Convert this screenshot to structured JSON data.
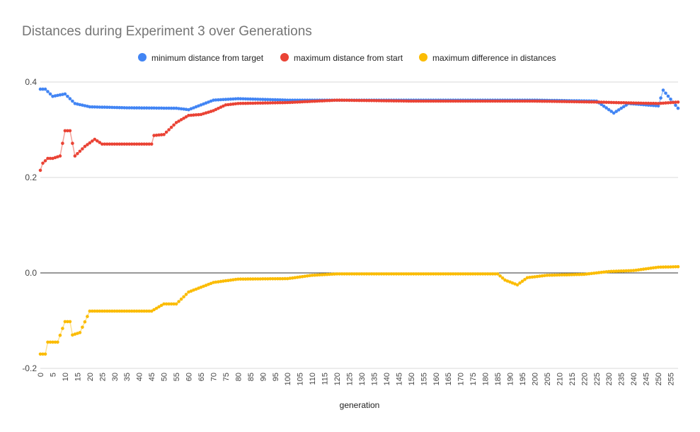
{
  "chart_data": {
    "type": "scatter",
    "title": "Distances during Experiment 3 over Generations",
    "xlabel": "generation",
    "ylabel": "",
    "xlim": [
      0,
      258
    ],
    "ylim": [
      -0.2,
      0.4
    ],
    "y_ticks": [
      {
        "value": -0.2,
        "label": "-0.2"
      },
      {
        "value": 0,
        "label": "0.0"
      },
      {
        "value": 0.2,
        "label": "0.2"
      },
      {
        "value": 0.4,
        "label": "0.4"
      }
    ],
    "x_ticks": [
      0,
      5,
      10,
      15,
      20,
      25,
      30,
      35,
      40,
      45,
      50,
      55,
      60,
      65,
      70,
      75,
      80,
      85,
      90,
      95,
      100,
      105,
      110,
      115,
      120,
      125,
      130,
      135,
      140,
      145,
      150,
      155,
      160,
      165,
      170,
      175,
      180,
      185,
      190,
      195,
      200,
      205,
      210,
      215,
      220,
      225,
      230,
      235,
      240,
      245,
      250,
      255
    ],
    "grid": true,
    "legend_position": "top",
    "trendlines": true,
    "series": [
      {
        "name": "minimum distance from target",
        "color": "#4285f4",
        "trend_color": "#a0c2fa",
        "anchors": [
          [
            0,
            0.385
          ],
          [
            2,
            0.385
          ],
          [
            5,
            0.37
          ],
          [
            10,
            0.375
          ],
          [
            14,
            0.355
          ],
          [
            20,
            0.348
          ],
          [
            35,
            0.346
          ],
          [
            55,
            0.345
          ],
          [
            60,
            0.342
          ],
          [
            70,
            0.362
          ],
          [
            80,
            0.365
          ],
          [
            100,
            0.362
          ],
          [
            150,
            0.362
          ],
          [
            200,
            0.362
          ],
          [
            225,
            0.36
          ],
          [
            232,
            0.335
          ],
          [
            238,
            0.355
          ],
          [
            245,
            0.352
          ],
          [
            250,
            0.35
          ],
          [
            252,
            0.383
          ],
          [
            258,
            0.345
          ]
        ]
      },
      {
        "name": "maximum distance from start",
        "color": "#ea4335",
        "trend_color": "#f4a19a",
        "anchors": [
          [
            0,
            0.215
          ],
          [
            1,
            0.23
          ],
          [
            3,
            0.24
          ],
          [
            5,
            0.24
          ],
          [
            8,
            0.245
          ],
          [
            10,
            0.298
          ],
          [
            12,
            0.298
          ],
          [
            14,
            0.245
          ],
          [
            18,
            0.265
          ],
          [
            22,
            0.28
          ],
          [
            25,
            0.27
          ],
          [
            45,
            0.27
          ],
          [
            46,
            0.288
          ],
          [
            50,
            0.29
          ],
          [
            55,
            0.315
          ],
          [
            60,
            0.33
          ],
          [
            65,
            0.332
          ],
          [
            70,
            0.34
          ],
          [
            75,
            0.352
          ],
          [
            80,
            0.355
          ],
          [
            100,
            0.357
          ],
          [
            120,
            0.362
          ],
          [
            150,
            0.36
          ],
          [
            200,
            0.36
          ],
          [
            225,
            0.358
          ],
          [
            240,
            0.356
          ],
          [
            250,
            0.355
          ],
          [
            258,
            0.358
          ]
        ]
      },
      {
        "name": "maximum difference in distances",
        "color": "#fbbc04",
        "trend_color": "#fde293",
        "anchors": [
          [
            0,
            -0.17
          ],
          [
            2,
            -0.17
          ],
          [
            3,
            -0.145
          ],
          [
            7,
            -0.145
          ],
          [
            10,
            -0.102
          ],
          [
            12,
            -0.102
          ],
          [
            13,
            -0.13
          ],
          [
            16,
            -0.125
          ],
          [
            20,
            -0.08
          ],
          [
            45,
            -0.08
          ],
          [
            50,
            -0.065
          ],
          [
            55,
            -0.065
          ],
          [
            60,
            -0.04
          ],
          [
            65,
            -0.03
          ],
          [
            70,
            -0.02
          ],
          [
            80,
            -0.013
          ],
          [
            100,
            -0.012
          ],
          [
            110,
            -0.005
          ],
          [
            120,
            -0.002
          ],
          [
            180,
            -0.002
          ],
          [
            185,
            -0.002
          ],
          [
            188,
            -0.015
          ],
          [
            193,
            -0.025
          ],
          [
            197,
            -0.01
          ],
          [
            205,
            -0.005
          ],
          [
            220,
            -0.003
          ],
          [
            230,
            0.003
          ],
          [
            240,
            0.005
          ],
          [
            250,
            0.012
          ],
          [
            258,
            0.013
          ]
        ]
      }
    ]
  }
}
